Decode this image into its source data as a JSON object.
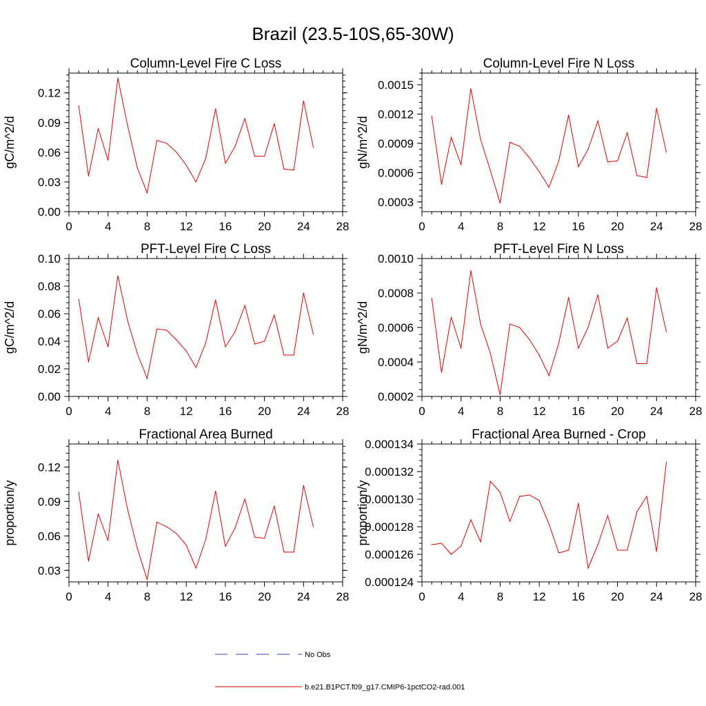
{
  "figure": {
    "title": "Brazil (23.5-10S,65-30W)",
    "legend": [
      {
        "label": "No Obs",
        "color": "#3a3ac8",
        "style": "dashed"
      },
      {
        "label": "b.e21.B1PCT.f09_g17.CMIP6-1pctCO2-rad.001",
        "color": "#e00000",
        "style": "solid"
      }
    ]
  },
  "chart_data": [
    {
      "type": "line",
      "title": "Column-Level Fire C Loss",
      "ylabel": "gC/m^2/d",
      "xlabel": "",
      "xlim": [
        0,
        28
      ],
      "xticks": [
        "0",
        "4",
        "8",
        "12",
        "16",
        "20",
        "24",
        "28"
      ],
      "ylim": [
        0.0,
        0.14
      ],
      "yticks": [
        "0.00",
        "0.03",
        "0.06",
        "0.09",
        "0.12"
      ],
      "series": [
        {
          "color": "#e00000",
          "x": [
            1,
            2,
            3,
            4,
            5,
            6,
            7,
            8,
            9,
            10,
            11,
            12,
            13,
            14,
            15,
            16,
            17,
            18,
            19,
            20,
            21,
            22,
            23,
            24,
            25
          ],
          "values": [
            0.107,
            0.036,
            0.084,
            0.052,
            0.135,
            0.087,
            0.044,
            0.019,
            0.072,
            0.069,
            0.06,
            0.047,
            0.03,
            0.054,
            0.104,
            0.049,
            0.066,
            0.094,
            0.056,
            0.056,
            0.089,
            0.043,
            0.042,
            0.112,
            0.065
          ]
        }
      ]
    },
    {
      "type": "line",
      "title": "Column-Level Fire N Loss",
      "ylabel": "gN/m^2/d",
      "xlabel": "",
      "xlim": [
        0,
        28
      ],
      "xticks": [
        "0",
        "4",
        "8",
        "12",
        "16",
        "20",
        "24",
        "28"
      ],
      "ylim": [
        0.0002,
        0.00162
      ],
      "yticks": [
        "0.0003",
        "0.0006",
        "0.0009",
        "0.0012",
        "0.0015"
      ],
      "series": [
        {
          "color": "#e00000",
          "x": [
            1,
            2,
            3,
            4,
            5,
            6,
            7,
            8,
            9,
            10,
            11,
            12,
            13,
            14,
            15,
            16,
            17,
            18,
            19,
            20,
            21,
            22,
            23,
            24,
            25
          ],
          "values": [
            0.00118,
            0.00048,
            0.00096,
            0.00068,
            0.00146,
            0.00094,
            0.00062,
            0.00029,
            0.00091,
            0.00087,
            0.00075,
            0.00061,
            0.00045,
            0.00072,
            0.00119,
            0.00066,
            0.00084,
            0.00113,
            0.00071,
            0.00072,
            0.00101,
            0.00057,
            0.00055,
            0.00126,
            0.00081
          ]
        }
      ]
    },
    {
      "type": "line",
      "title": "PFT-Level Fire C Loss",
      "ylabel": "gC/m^2/d",
      "xlabel": "",
      "xlim": [
        0,
        28
      ],
      "xticks": [
        "0",
        "4",
        "8",
        "12",
        "16",
        "20",
        "24",
        "28"
      ],
      "ylim": [
        0.0,
        0.1
      ],
      "yticks": [
        "0.00",
        "0.02",
        "0.04",
        "0.06",
        "0.08",
        "0.10"
      ],
      "series": [
        {
          "color": "#e00000",
          "x": [
            1,
            2,
            3,
            4,
            5,
            6,
            7,
            8,
            9,
            10,
            11,
            12,
            13,
            14,
            15,
            16,
            17,
            18,
            19,
            20,
            21,
            22,
            23,
            24,
            25
          ],
          "values": [
            0.0705,
            0.025,
            0.057,
            0.036,
            0.0875,
            0.055,
            0.031,
            0.013,
            0.049,
            0.048,
            0.041,
            0.033,
            0.021,
            0.039,
            0.07,
            0.036,
            0.047,
            0.066,
            0.038,
            0.04,
            0.059,
            0.03,
            0.03,
            0.075,
            0.045
          ]
        }
      ]
    },
    {
      "type": "line",
      "title": "PFT-Level Fire N Loss",
      "ylabel": "gN/m^2/d",
      "xlabel": "",
      "xlim": [
        0,
        28
      ],
      "xticks": [
        "0",
        "4",
        "8",
        "12",
        "16",
        "20",
        "24",
        "28"
      ],
      "ylim": [
        0.0002,
        0.001
      ],
      "yticks": [
        "0.0002",
        "0.0004",
        "0.0006",
        "0.0008",
        "0.0010"
      ],
      "series": [
        {
          "color": "#e00000",
          "x": [
            1,
            2,
            3,
            4,
            5,
            6,
            7,
            8,
            9,
            10,
            11,
            12,
            13,
            14,
            15,
            16,
            17,
            18,
            19,
            20,
            21,
            22,
            23,
            24,
            25
          ],
          "values": [
            0.00077,
            0.00034,
            0.00066,
            0.00048,
            0.00093,
            0.00062,
            0.00045,
            0.00021,
            0.00062,
            0.0006,
            0.00053,
            0.00044,
            0.00032,
            0.00051,
            0.000775,
            0.00048,
            0.0006,
            0.00079,
            0.00048,
            0.00052,
            0.000655,
            0.00039,
            0.00039,
            0.00083,
            0.000575
          ]
        }
      ]
    },
    {
      "type": "line",
      "title": "Fractional Area Burned",
      "ylabel": "proportion/y",
      "xlabel": "",
      "xlim": [
        0,
        28
      ],
      "xticks": [
        "0",
        "4",
        "8",
        "12",
        "16",
        "20",
        "24",
        "28"
      ],
      "ylim": [
        0.02,
        0.14
      ],
      "yticks": [
        "0.03",
        "0.06",
        "0.09",
        "0.12"
      ],
      "series": [
        {
          "color": "#e00000",
          "x": [
            1,
            2,
            3,
            4,
            5,
            6,
            7,
            8,
            9,
            10,
            11,
            12,
            13,
            14,
            15,
            16,
            17,
            18,
            19,
            20,
            21,
            22,
            23,
            24,
            25
          ],
          "values": [
            0.098,
            0.038,
            0.079,
            0.056,
            0.126,
            0.083,
            0.049,
            0.022,
            0.072,
            0.068,
            0.062,
            0.052,
            0.032,
            0.057,
            0.099,
            0.051,
            0.067,
            0.092,
            0.059,
            0.058,
            0.086,
            0.046,
            0.046,
            0.104,
            0.068
          ]
        }
      ]
    },
    {
      "type": "line",
      "title": "Fractional Area Burned - Crop",
      "ylabel": "proportion/y",
      "xlabel": "",
      "xlim": [
        0,
        28
      ],
      "xticks": [
        "0",
        "4",
        "8",
        "12",
        "16",
        "20",
        "24",
        "28"
      ],
      "ylim": [
        0.000124,
        0.000134
      ],
      "yticks": [
        "0.000124",
        "0.000126",
        "0.000128",
        "0.000130",
        "0.000132",
        "0.000134"
      ],
      "series": [
        {
          "color": "#e00000",
          "x": [
            1,
            2,
            3,
            4,
            5,
            6,
            7,
            8,
            9,
            10,
            11,
            12,
            13,
            14,
            15,
            16,
            17,
            18,
            19,
            20,
            21,
            22,
            23,
            24,
            25
          ],
          "values": [
            0.0001267,
            0.0001268,
            0.000126,
            0.0001266,
            0.0001285,
            0.0001269,
            0.0001313,
            0.0001305,
            0.0001284,
            0.0001302,
            0.0001303,
            0.0001299,
            0.0001282,
            0.0001261,
            0.0001263,
            0.0001297,
            0.000125,
            0.0001267,
            0.0001288,
            0.0001263,
            0.0001263,
            0.0001291,
            0.0001302,
            0.0001262,
            0.0001327
          ]
        }
      ]
    }
  ]
}
